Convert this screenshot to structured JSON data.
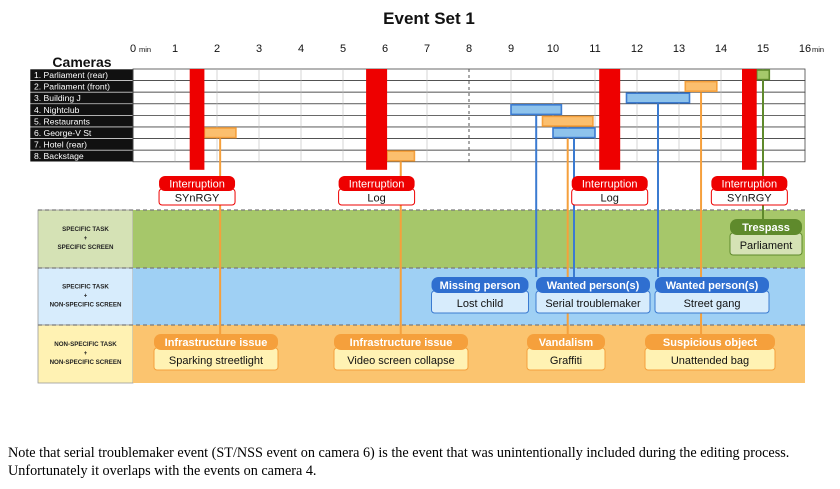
{
  "title": "Event Set 1",
  "cameras_label": "Cameras",
  "time_axis": {
    "ticks": [
      "0",
      "1",
      "2",
      "3",
      "4",
      "5",
      "6",
      "7",
      "8",
      "9",
      "10",
      "11",
      "12",
      "13",
      "14",
      "15",
      "16"
    ],
    "unit": "min",
    "min": 0,
    "max": 16,
    "dashed_gridline_at": [
      8
    ]
  },
  "cameras": [
    "1. Parliament (rear)",
    "2. Parliament (front)",
    "3. Building J",
    "4. Nightclub",
    "5. Restaurants",
    "6. George-V St",
    "7. Hotel (rear)",
    "8. Backstage"
  ],
  "colors": {
    "interruption": "#ee0000",
    "orange_fill": "#fbbf6e",
    "orange_stroke": "#f5a03c",
    "blue_fill": "#8ec3ec",
    "blue_stroke": "#3b7bd1",
    "green_fill": "#a5c96b",
    "green_stroke": "#5f8a2c",
    "band_green": "#a6c76a",
    "band_blue": "#9fd0f4",
    "band_orange": "#fbc46f",
    "label_green": "#d5e2b5",
    "label_blue": "#d7ecfc",
    "label_orange": "#fff2b3"
  },
  "interruptions": [
    {
      "start": 1.35,
      "end": 1.7,
      "label": "Interruption",
      "sublabel": "SYnRGY"
    },
    {
      "start": 5.55,
      "end": 6.05,
      "label": "Interruption",
      "sublabel": "Log"
    },
    {
      "start": 11.1,
      "end": 11.6,
      "label": "Interruption",
      "sublabel": "Log"
    },
    {
      "start": 14.5,
      "end": 14.85,
      "label": "Interruption",
      "sublabel": "SYnRGY"
    }
  ],
  "bands": [
    {
      "label_lines": [
        "SPECIFIC TASK",
        "+",
        "SPECIFIC SCREEN"
      ],
      "color": "green"
    },
    {
      "label_lines": [
        "SPECIFIC TASK",
        "+",
        "NON-SPECIFIC SCREEN"
      ],
      "color": "blue"
    },
    {
      "label_lines": [
        "NON-SPECIFIC TASK",
        "+",
        "NON-SPECIFIC SCREEN"
      ],
      "color": "orange"
    }
  ],
  "events": [
    {
      "camera": 1,
      "start": 14.85,
      "end": 15.15,
      "color": "green",
      "band": 0,
      "category": "Trespass",
      "name": "Parliament"
    },
    {
      "camera": 2,
      "start": 13.15,
      "end": 13.9,
      "color": "orange",
      "band": 2,
      "category": "Suspicious object",
      "name": "Unattended bag"
    },
    {
      "camera": 3,
      "start": 11.75,
      "end": 13.25,
      "color": "blue",
      "band": 1,
      "category": "Wanted person(s)",
      "name": "Street gang"
    },
    {
      "camera": 4,
      "start": 9.0,
      "end": 10.2,
      "color": "blue",
      "band": 1,
      "category": "Missing person",
      "name": "Lost child"
    },
    {
      "camera": 5,
      "start": 9.75,
      "end": 10.95,
      "color": "orange",
      "band": 2,
      "category": "Vandalism",
      "name": "Graffiti"
    },
    {
      "camera": 6,
      "start": 10.0,
      "end": 11.0,
      "color": "blue",
      "band": 1,
      "category": "Wanted person(s)",
      "name": "Serial troublemaker"
    },
    {
      "camera": 6,
      "start": 1.7,
      "end": 2.45,
      "color": "orange",
      "band": 2,
      "category": "Infrastructure issue",
      "name": "Sparking streetlight"
    },
    {
      "camera": 8,
      "start": 6.05,
      "end": 6.7,
      "color": "orange",
      "band": 2,
      "category": "Infrastructure issue",
      "name": "Video screen collapse"
    }
  ],
  "note": "Note that serial troublemaker event (ST/NSS event on camera 6) is the event that was unintentionally included during the editing process. Unfortunately it overlaps with the events on camera 4."
}
